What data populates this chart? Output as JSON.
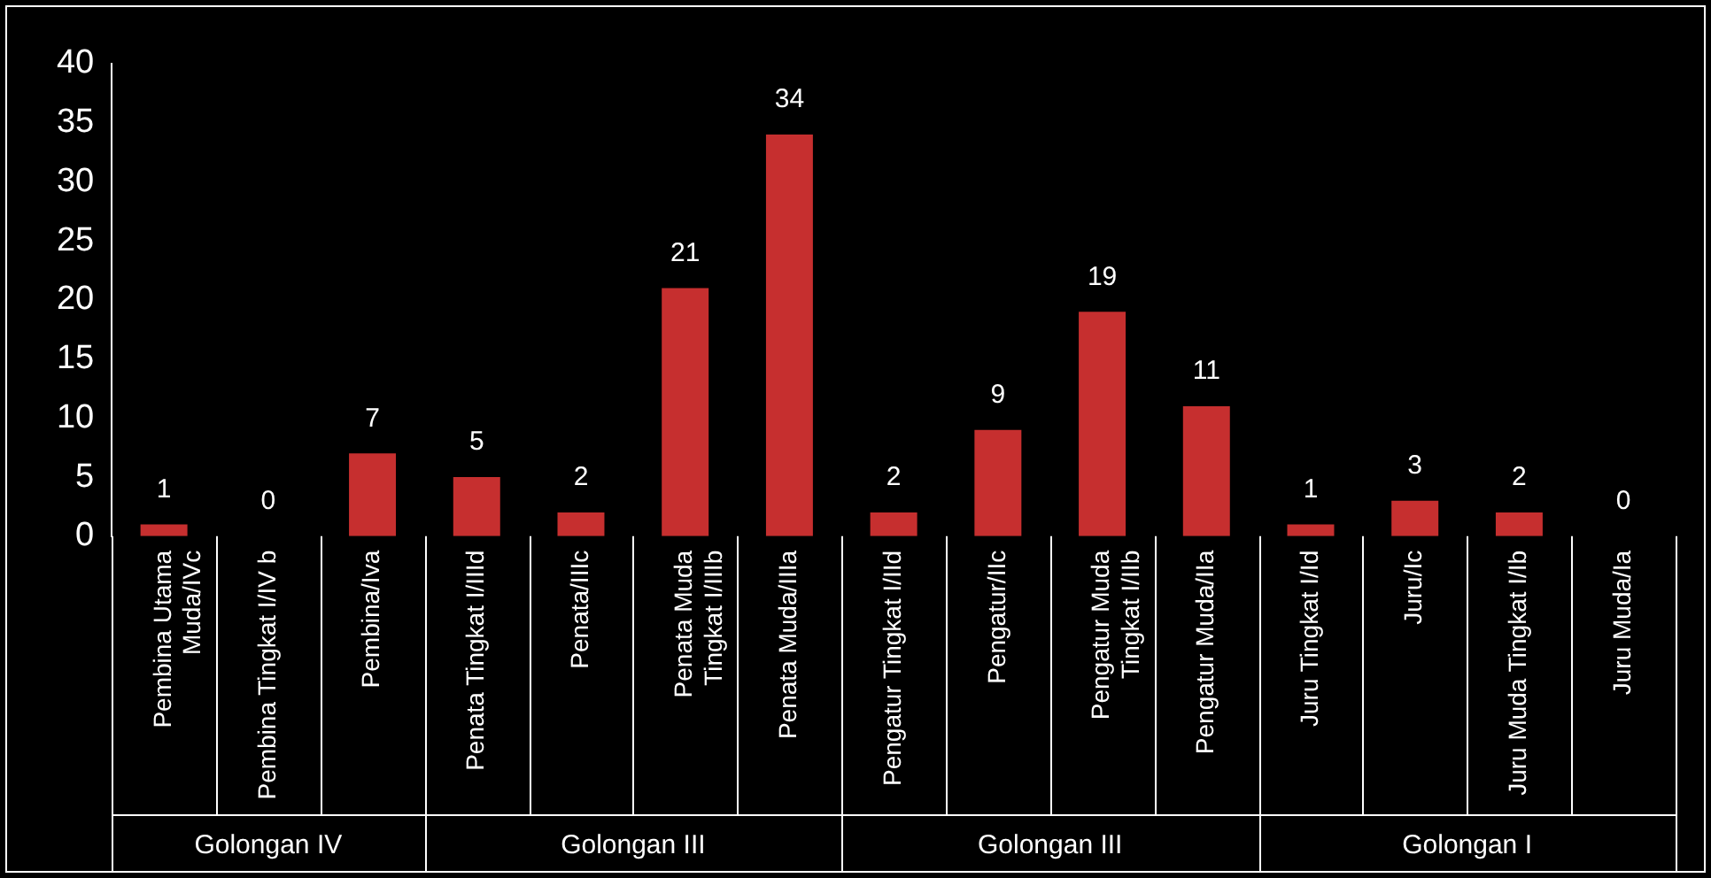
{
  "chart_data": {
    "type": "bar",
    "categories": [
      "Pembina Utama Muda/IVc",
      "Pembina Tingkat I/IV b",
      "Pembina/Iva",
      "Penata Tingkat I/IIId",
      "Penata/IIIc",
      "Penata Muda Tingkat I/IIIb",
      "Penata Muda/IIIa",
      "Pengatur Tingkat I/IId",
      "Pengatur/IIc",
      "Pengatur Muda Tingkat I/IIb",
      "Pengatur Muda/IIa",
      "Juru Tingkat I/Id",
      "Juru/Ic",
      "Juru Muda Tingkat I/Ib",
      "Juru Muda/Ia"
    ],
    "values": [
      1,
      0,
      7,
      5,
      2,
      21,
      34,
      2,
      9,
      19,
      11,
      1,
      3,
      2,
      0
    ],
    "color": "#c62f2f",
    "ylim": [
      0,
      40
    ],
    "yticks": [
      0,
      5,
      10,
      15,
      20,
      25,
      30,
      35,
      40
    ],
    "grid": false,
    "legend": false,
    "data_labels": true,
    "annotations": [
      "Golongan IV",
      "Golongan III",
      "Golongan III",
      "Golongan I"
    ]
  }
}
